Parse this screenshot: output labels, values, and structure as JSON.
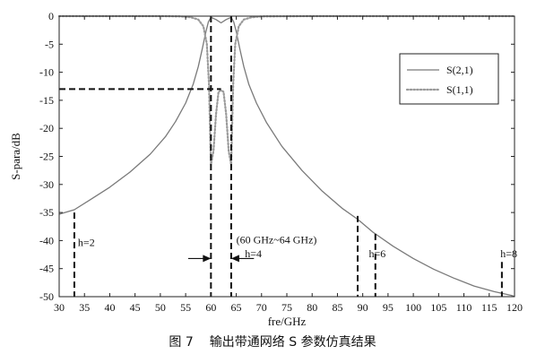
{
  "chart_data": {
    "type": "line",
    "xlabel": "fre/GHz",
    "ylabel": "S-para/dB",
    "xlim": [
      30,
      120
    ],
    "ylim": [
      -50,
      0
    ],
    "x_ticks": [
      30,
      35,
      40,
      45,
      50,
      55,
      60,
      65,
      70,
      75,
      80,
      85,
      90,
      95,
      100,
      105,
      110,
      115,
      120
    ],
    "y_ticks": [
      0,
      -5,
      -10,
      -15,
      -20,
      -25,
      -30,
      -35,
      -40,
      -45,
      -50
    ],
    "x_tick_labels": [
      "30",
      "35",
      "40",
      "45",
      "50",
      "55",
      "60",
      "65",
      "70",
      "75",
      "80",
      "85",
      "90",
      "95",
      "100",
      "105",
      "110",
      "115",
      "120"
    ],
    "y_tick_labels": [
      "0",
      "-5",
      "-10",
      "-15",
      "-20",
      "-25",
      "-30",
      "-35",
      "-40",
      "-45",
      "-50"
    ],
    "legend_position": "right",
    "grid": false,
    "series": [
      {
        "name": "S(2,1)",
        "style": "solid",
        "color": "#7a7a7a",
        "x": [
          30,
          33,
          36,
          40,
          44,
          48,
          51,
          53,
          55,
          56.5,
          57.5,
          58.3,
          59,
          59.5,
          60,
          61,
          62,
          63,
          64,
          64.5,
          65,
          65.7,
          66.5,
          67.5,
          69,
          71,
          74,
          78,
          82,
          86,
          89,
          92,
          96,
          100,
          104,
          108,
          112,
          116,
          118,
          119.5,
          120
        ],
        "y": [
          -35.3,
          -34.5,
          -32.8,
          -30.5,
          -27.8,
          -24.6,
          -21.5,
          -18.8,
          -15.5,
          -12.1,
          -9,
          -5.8,
          -2.8,
          -1,
          -0.2,
          -0.6,
          -1.2,
          -0.6,
          -0.2,
          -1,
          -2.8,
          -5.8,
          -9,
          -12.2,
          -15.5,
          -19,
          -23.2,
          -27.5,
          -31.2,
          -34.3,
          -36.2,
          -38.5,
          -41,
          -43.2,
          -45.1,
          -46.7,
          -48.1,
          -49.1,
          -49.5,
          -49.8,
          -50
        ]
      },
      {
        "name": "S(1,1)",
        "style": "dotted",
        "color": "#9a9a9a",
        "x": [
          30,
          40,
          50,
          54,
          56,
          57.5,
          58.5,
          59.2,
          59.6,
          60,
          60.5,
          61,
          61.5,
          62,
          62.5,
          63,
          63.5,
          64,
          64.4,
          64.8,
          65.5,
          66.5,
          68,
          70,
          80,
          100,
          120
        ],
        "y": [
          0,
          0,
          0,
          -0.05,
          -0.2,
          -0.6,
          -1.8,
          -5,
          -12,
          -26.5,
          -24,
          -17.5,
          -13.5,
          -13.2,
          -13.5,
          -17.5,
          -24,
          -26.5,
          -12,
          -5,
          -1.8,
          -0.6,
          -0.2,
          -0.05,
          0,
          0,
          0
        ]
      }
    ],
    "annotations": [
      {
        "text": "h=2",
        "x": 33,
        "y": -41
      },
      {
        "text": "h=4",
        "x": 66,
        "y": -43
      },
      {
        "text": "h=6",
        "x": 90.5,
        "y": -43
      },
      {
        "text": "h=8",
        "x": 116.5,
        "y": -43
      },
      {
        "text": "(60 GHz~64 GHz)",
        "x": 64.3,
        "y": -40.5
      }
    ],
    "markers": {
      "vertical_lines": [
        {
          "x": 33,
          "y_from": -35,
          "y_to": -50
        },
        {
          "x": 60,
          "y_from": 0,
          "y_to": -50
        },
        {
          "x": 64,
          "y_from": 0,
          "y_to": -50
        },
        {
          "x": 89,
          "y_from": -35.6,
          "y_to": -50
        },
        {
          "x": 92.5,
          "y_from": -38.8,
          "y_to": -50
        },
        {
          "x": 117.5,
          "y_from": -43.8,
          "y_to": -50
        }
      ],
      "horizontal_line": {
        "y": -13,
        "x_from": 30,
        "x_to": 62
      },
      "arrows": [
        {
          "x_from": 55.5,
          "x_to": 60,
          "y": -43.2
        },
        {
          "x_from": 68.5,
          "x_to": 64,
          "y": -43.2
        }
      ]
    }
  },
  "caption": {
    "figure_label": "图 7",
    "text": "输出带通网络 S 参数仿真结果"
  }
}
